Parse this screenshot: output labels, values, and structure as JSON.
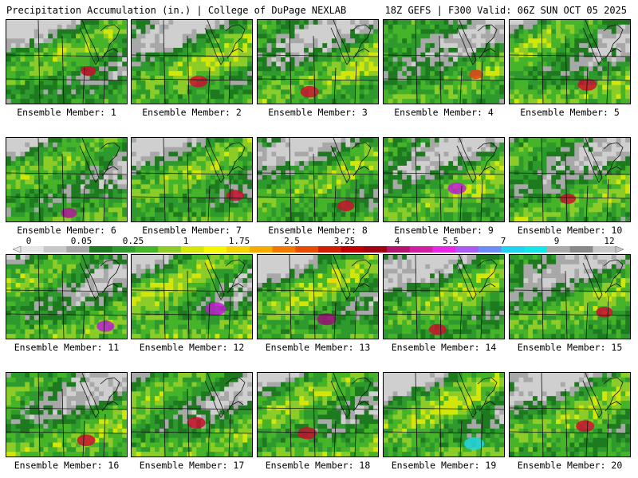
{
  "header": {
    "left_title": "Precipitation Accumulation (in.) | College of DuPage NEXLAB",
    "right_title": "18Z GEFS | F300 Valid: 06Z SUN OCT 05 2025"
  },
  "panels": [
    {
      "caption": "Ensemble Member: 1",
      "hot": 0.35,
      "peak": "#c8102e"
    },
    {
      "caption": "Ensemble Member: 2",
      "hot": 0.55,
      "peak": "#c8102e"
    },
    {
      "caption": "Ensemble Member: 3",
      "hot": 0.55,
      "peak": "#c8102e"
    },
    {
      "caption": "Ensemble Member: 4",
      "hot": 0.3,
      "peak": "#e0401a"
    },
    {
      "caption": "Ensemble Member: 5",
      "hot": 0.6,
      "peak": "#c8102e"
    },
    {
      "caption": "Ensemble Member: 6",
      "hot": 0.4,
      "peak": "#b0179a"
    },
    {
      "caption": "Ensemble Member: 7",
      "hot": 0.5,
      "peak": "#c8102e"
    },
    {
      "caption": "Ensemble Member: 8",
      "hot": 0.45,
      "peak": "#c8102e"
    },
    {
      "caption": "Ensemble Member: 9",
      "hot": 0.55,
      "peak": "#c01fd0"
    },
    {
      "caption": "Ensemble Member: 10",
      "hot": 0.4,
      "peak": "#c8102e"
    },
    {
      "caption": "Ensemble Member: 11",
      "hot": 0.5,
      "peak": "#c01fd0"
    },
    {
      "caption": "Ensemble Member: 12",
      "hot": 0.7,
      "peak": "#c01fd0"
    },
    {
      "caption": "Ensemble Member: 13",
      "hot": 0.6,
      "peak": "#a0117a"
    },
    {
      "caption": "Ensemble Member: 14",
      "hot": 0.5,
      "peak": "#c8102e"
    },
    {
      "caption": "Ensemble Member: 15",
      "hot": 0.45,
      "peak": "#c8102e"
    },
    {
      "caption": "Ensemble Member: 16",
      "hot": 0.55,
      "peak": "#c8102e"
    },
    {
      "caption": "Ensemble Member: 17",
      "hot": 0.55,
      "peak": "#c8102e"
    },
    {
      "caption": "Ensemble Member: 18",
      "hot": 0.6,
      "peak": "#c8102e"
    },
    {
      "caption": "Ensemble Member: 19",
      "hot": 0.65,
      "peak": "#22d6e6"
    },
    {
      "caption": "Ensemble Member: 20",
      "hot": 0.55,
      "peak": "#c8102e"
    }
  ],
  "colorbar": {
    "labels": [
      "0",
      "0.05",
      "0.25",
      "1",
      "1.75",
      "2.5",
      "3.25",
      "4",
      "5.5",
      "7",
      "9",
      "12"
    ],
    "colors": [
      "#e6e6e6",
      "#c8c8c8",
      "#a8a8a8",
      "#1e7a1e",
      "#2e9a2e",
      "#46b428",
      "#8ccc28",
      "#d2e60a",
      "#f5f500",
      "#f5d200",
      "#f5aa00",
      "#f07800",
      "#e64b00",
      "#d21e00",
      "#c00000",
      "#a00014",
      "#b4146e",
      "#d21ea0",
      "#e628e6",
      "#aa5af0",
      "#6e8cf5",
      "#1ed2f0",
      "#14e6e6",
      "#aaaaaa",
      "#888888",
      "#c8c8c8"
    ]
  }
}
